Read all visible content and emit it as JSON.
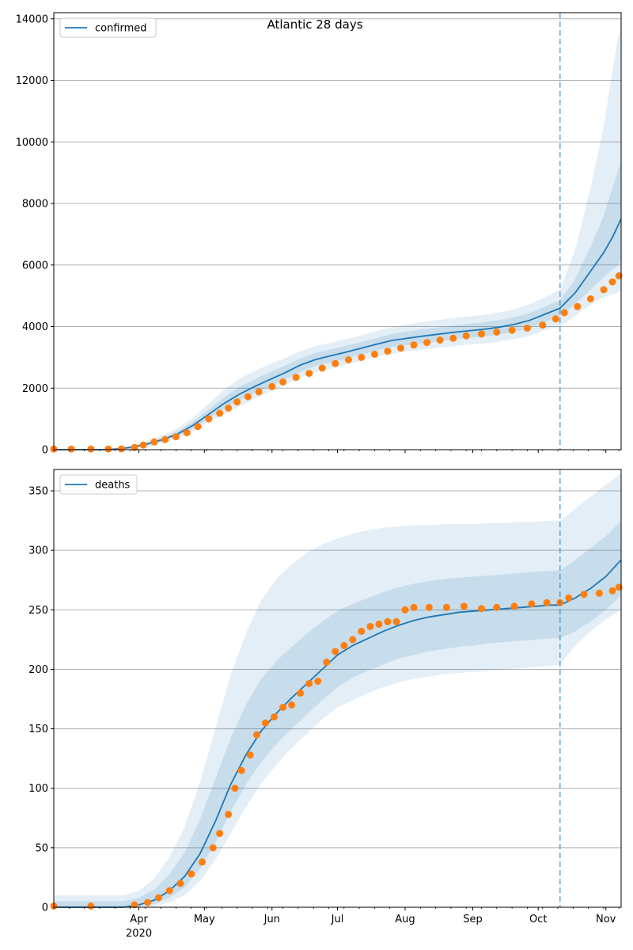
{
  "chart_data": [
    {
      "type": "line",
      "title": "Atlantic 28 days",
      "xlabel": "",
      "ylabel": "",
      "ylim": [
        0,
        14200
      ],
      "yticks": [
        0,
        2000,
        4000,
        6000,
        8000,
        10000,
        12000,
        14000
      ],
      "grid": "horizontal",
      "legend_position": "top-left",
      "x_range": [
        "2020-02-22",
        "2020-11-08"
      ],
      "forecast_start": "2020-10-11",
      "series": [
        {
          "name": "confirmed",
          "kind": "model-median",
          "color": "#1f77b4",
          "x": [
            "2020-02-22",
            "2020-03-08",
            "2020-03-15",
            "2020-03-22",
            "2020-03-29",
            "2020-04-05",
            "2020-04-12",
            "2020-04-19",
            "2020-04-26",
            "2020-05-03",
            "2020-05-10",
            "2020-05-17",
            "2020-05-24",
            "2020-05-31",
            "2020-06-07",
            "2020-06-14",
            "2020-06-21",
            "2020-06-28",
            "2020-07-05",
            "2020-07-12",
            "2020-07-19",
            "2020-07-26",
            "2020-08-02",
            "2020-08-09",
            "2020-08-16",
            "2020-08-23",
            "2020-08-30",
            "2020-09-06",
            "2020-09-13",
            "2020-09-20",
            "2020-09-27",
            "2020-10-04",
            "2020-10-11",
            "2020-10-18",
            "2020-10-25",
            "2020-10-31",
            "2020-11-04",
            "2020-11-08"
          ],
          "values": [
            0,
            0,
            0,
            20,
            80,
            190,
            330,
            520,
            800,
            1150,
            1500,
            1800,
            2050,
            2280,
            2500,
            2750,
            2930,
            3050,
            3170,
            3300,
            3430,
            3550,
            3620,
            3690,
            3750,
            3810,
            3860,
            3910,
            3980,
            4070,
            4200,
            4400,
            4600,
            5100,
            5800,
            6400,
            6900,
            7500
          ],
          "band_outer_upper": [
            0,
            0,
            0,
            60,
            150,
            290,
            470,
            700,
            1050,
            1500,
            1950,
            2300,
            2550,
            2780,
            2980,
            3200,
            3370,
            3480,
            3590,
            3710,
            3850,
            3990,
            4070,
            4150,
            4210,
            4270,
            4330,
            4380,
            4460,
            4560,
            4720,
            4950,
            5200,
            6500,
            8500,
            10500,
            12300,
            14000
          ],
          "band_outer_lower": [
            0,
            0,
            0,
            0,
            30,
            100,
            220,
            380,
            600,
            900,
            1150,
            1400,
            1650,
            1880,
            2100,
            2350,
            2530,
            2640,
            2760,
            2890,
            3010,
            3120,
            3190,
            3250,
            3310,
            3360,
            3410,
            3450,
            3510,
            3590,
            3700,
            3880,
            4000,
            4350,
            4700,
            4950,
            5050,
            5150
          ],
          "band_inner_upper": [
            0,
            0,
            0,
            40,
            110,
            240,
            400,
            610,
            920,
            1310,
            1700,
            2040,
            2290,
            2520,
            2730,
            2970,
            3140,
            3260,
            3380,
            3500,
            3630,
            3760,
            3840,
            3910,
            3970,
            4030,
            4090,
            4140,
            4210,
            4300,
            4440,
            4650,
            4860,
            5550,
            6600,
            7600,
            8500,
            9400
          ],
          "band_inner_lower": [
            0,
            0,
            0,
            5,
            55,
            145,
            270,
            440,
            690,
            1010,
            1320,
            1600,
            1840,
            2060,
            2280,
            2530,
            2720,
            2830,
            2950,
            3090,
            3220,
            3340,
            3400,
            3460,
            3520,
            3580,
            3630,
            3680,
            3740,
            3830,
            3950,
            4140,
            4340,
            4750,
            5200,
            5600,
            5850,
            6100
          ]
        },
        {
          "name": "",
          "kind": "observed",
          "color": "#ff7f0e",
          "x": [
            "2020-02-22",
            "2020-03-01",
            "2020-03-10",
            "2020-03-18",
            "2020-03-24",
            "2020-03-30",
            "2020-04-03",
            "2020-04-08",
            "2020-04-13",
            "2020-04-18",
            "2020-04-23",
            "2020-04-28",
            "2020-05-03",
            "2020-05-08",
            "2020-05-12",
            "2020-05-16",
            "2020-05-21",
            "2020-05-26",
            "2020-06-01",
            "2020-06-06",
            "2020-06-12",
            "2020-06-18",
            "2020-06-24",
            "2020-06-30",
            "2020-07-06",
            "2020-07-12",
            "2020-07-18",
            "2020-07-24",
            "2020-07-30",
            "2020-08-05",
            "2020-08-11",
            "2020-08-17",
            "2020-08-23",
            "2020-08-29",
            "2020-09-05",
            "2020-09-12",
            "2020-09-19",
            "2020-09-26",
            "2020-10-03",
            "2020-10-09",
            "2020-10-13",
            "2020-10-19",
            "2020-10-25",
            "2020-10-31",
            "2020-11-04",
            "2020-11-07"
          ],
          "values": [
            20,
            20,
            20,
            20,
            25,
            70,
            150,
            250,
            330,
            420,
            550,
            750,
            1000,
            1180,
            1350,
            1550,
            1720,
            1880,
            2050,
            2200,
            2350,
            2480,
            2650,
            2800,
            2920,
            3000,
            3100,
            3200,
            3300,
            3400,
            3480,
            3560,
            3620,
            3700,
            3760,
            3820,
            3880,
            3950,
            4050,
            4250,
            4450,
            4650,
            4900,
            5200,
            5450,
            5650
          ]
        }
      ]
    },
    {
      "type": "line",
      "title": "",
      "xlabel": "",
      "ylabel": "",
      "ylim": [
        0,
        368
      ],
      "yticks": [
        0,
        50,
        100,
        150,
        200,
        250,
        300,
        350
      ],
      "grid": "horizontal",
      "legend_position": "top-left",
      "x_range": [
        "2020-02-22",
        "2020-11-08"
      ],
      "forecast_start": "2020-10-11",
      "xticks": [
        "Apr",
        "May",
        "Jun",
        "Jul",
        "Aug",
        "Sep",
        "Oct",
        "Nov"
      ],
      "xtick_dates": [
        "2020-04-01",
        "2020-05-01",
        "2020-06-01",
        "2020-07-01",
        "2020-08-01",
        "2020-09-01",
        "2020-10-01",
        "2020-11-01"
      ],
      "x_year_label": "2020",
      "series": [
        {
          "name": "deaths",
          "kind": "model-median",
          "color": "#1f77b4",
          "x": [
            "2020-02-22",
            "2020-03-15",
            "2020-03-25",
            "2020-04-01",
            "2020-04-08",
            "2020-04-15",
            "2020-04-22",
            "2020-04-29",
            "2020-05-06",
            "2020-05-13",
            "2020-05-20",
            "2020-05-27",
            "2020-06-03",
            "2020-06-10",
            "2020-06-17",
            "2020-06-24",
            "2020-07-01",
            "2020-07-08",
            "2020-07-15",
            "2020-07-22",
            "2020-07-29",
            "2020-08-05",
            "2020-08-12",
            "2020-08-19",
            "2020-08-26",
            "2020-09-02",
            "2020-09-09",
            "2020-09-16",
            "2020-09-23",
            "2020-09-30",
            "2020-10-07",
            "2020-10-11",
            "2020-10-18",
            "2020-10-25",
            "2020-11-01",
            "2020-11-08"
          ],
          "values": [
            0,
            0,
            0,
            2,
            6,
            14,
            26,
            45,
            72,
            103,
            128,
            148,
            163,
            176,
            188,
            200,
            212,
            220,
            226,
            232,
            237,
            241,
            244,
            246,
            248,
            249,
            250,
            251,
            252,
            253,
            254,
            254,
            260,
            268,
            278,
            292
          ],
          "band_outer_upper": [
            10,
            10,
            10,
            14,
            24,
            42,
            68,
            105,
            150,
            195,
            230,
            258,
            276,
            288,
            298,
            305,
            310,
            314,
            317,
            319,
            320,
            321,
            321,
            322,
            322,
            322,
            323,
            323,
            324,
            324,
            325,
            325,
            335,
            345,
            355,
            365
          ],
          "band_outer_lower": [
            0,
            0,
            0,
            0,
            1,
            4,
            10,
            22,
            40,
            62,
            84,
            104,
            120,
            134,
            146,
            158,
            168,
            174,
            180,
            185,
            189,
            192,
            194,
            196,
            197,
            198,
            199,
            200,
            201,
            202,
            203,
            204,
            220,
            232,
            242,
            250
          ],
          "band_inner_upper": [
            5,
            5,
            5,
            8,
            15,
            28,
            46,
            74,
            108,
            142,
            170,
            192,
            207,
            219,
            230,
            240,
            249,
            255,
            260,
            265,
            269,
            272,
            274,
            276,
            277,
            278,
            279,
            280,
            281,
            282,
            283,
            283,
            292,
            302,
            312,
            325
          ],
          "band_inner_lower": [
            0,
            0,
            0,
            1,
            3,
            8,
            17,
            32,
            54,
            80,
            103,
            122,
            137,
            150,
            162,
            174,
            185,
            193,
            199,
            204,
            209,
            212,
            215,
            217,
            219,
            220,
            222,
            223,
            224,
            225,
            226,
            226,
            232,
            240,
            250,
            262
          ]
        },
        {
          "name": "",
          "kind": "observed",
          "color": "#ff7f0e",
          "x": [
            "2020-02-22",
            "2020-03-10",
            "2020-03-30",
            "2020-04-05",
            "2020-04-10",
            "2020-04-15",
            "2020-04-20",
            "2020-04-25",
            "2020-04-30",
            "2020-05-05",
            "2020-05-08",
            "2020-05-12",
            "2020-05-15",
            "2020-05-18",
            "2020-05-22",
            "2020-05-25",
            "2020-05-29",
            "2020-06-02",
            "2020-06-06",
            "2020-06-10",
            "2020-06-14",
            "2020-06-18",
            "2020-06-22",
            "2020-06-26",
            "2020-06-30",
            "2020-07-04",
            "2020-07-08",
            "2020-07-12",
            "2020-07-16",
            "2020-07-20",
            "2020-07-24",
            "2020-07-28",
            "2020-08-01",
            "2020-08-05",
            "2020-08-12",
            "2020-08-20",
            "2020-08-28",
            "2020-09-05",
            "2020-09-12",
            "2020-09-20",
            "2020-09-28",
            "2020-10-05",
            "2020-10-11",
            "2020-10-15",
            "2020-10-22",
            "2020-10-29",
            "2020-11-04",
            "2020-11-07"
          ],
          "values": [
            1,
            1,
            2,
            4,
            8,
            14,
            20,
            28,
            38,
            50,
            62,
            78,
            100,
            115,
            128,
            145,
            155,
            160,
            168,
            170,
            180,
            188,
            190,
            206,
            215,
            220,
            225,
            232,
            236,
            238,
            240,
            240,
            250,
            252,
            252,
            252,
            253,
            251,
            252,
            253,
            255,
            256,
            256,
            260,
            263,
            264,
            266,
            269
          ]
        }
      ]
    }
  ]
}
